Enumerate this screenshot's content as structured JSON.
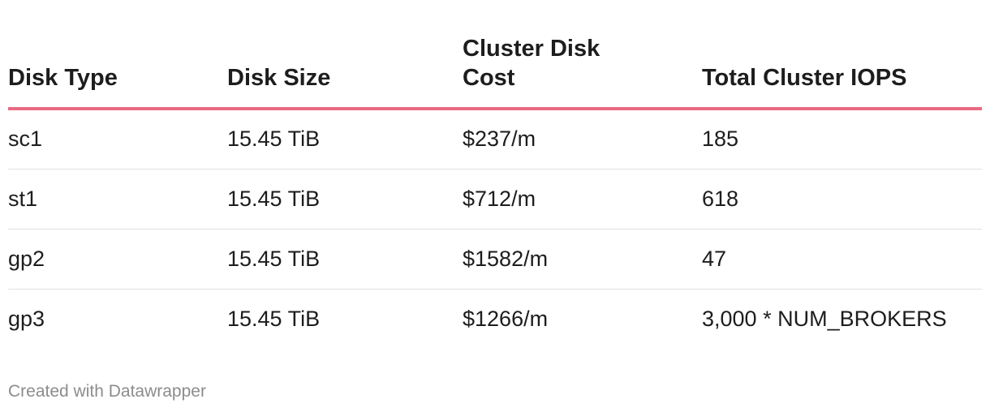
{
  "chart_data": {
    "type": "table",
    "columns": [
      "Disk Type",
      "Disk Size",
      "Cluster Disk Cost",
      "Total Cluster IOPS"
    ],
    "rows": [
      [
        "sc1",
        "15.45 TiB",
        "$237/m",
        "185"
      ],
      [
        "st1",
        "15.45 TiB",
        "$712/m",
        "618"
      ],
      [
        "gp2",
        "15.45 TiB",
        "$1582/m",
        "47"
      ],
      [
        "gp3",
        "15.45 TiB",
        "$1266/m",
        "3,000 * NUM_BROKERS"
      ]
    ],
    "header_rule_color": "#e96983"
  },
  "footer": {
    "credit": "Created with Datawrapper"
  }
}
